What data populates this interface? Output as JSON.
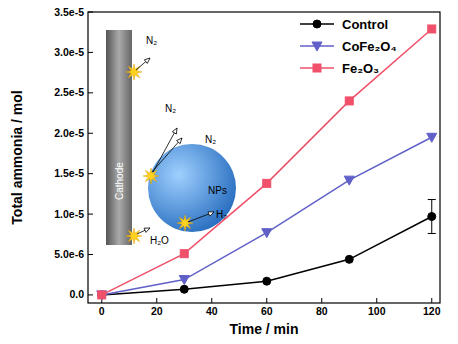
{
  "chart_data": {
    "type": "line",
    "x_label": "Time / min",
    "y_label": "Total ammonia / mol",
    "x": [
      0,
      30,
      60,
      90,
      120
    ],
    "series": [
      {
        "name": "Control",
        "color": "#000000",
        "marker": "circle",
        "values": [
          0,
          7e-07,
          1.7e-06,
          4.4e-06,
          9.7e-06
        ],
        "errors": [
          null,
          null,
          null,
          null,
          2.1e-06
        ]
      },
      {
        "name": "CoFe₂O₄",
        "color": "#6060c8",
        "marker": "triangle-down",
        "values": [
          0,
          1.9e-06,
          7.7e-06,
          1.42e-05,
          1.95e-05
        ]
      },
      {
        "name": "Fe₂O₃",
        "color": "#f0506a",
        "marker": "square",
        "values": [
          0,
          5.1e-06,
          1.38e-05,
          2.4e-05,
          3.29e-05
        ]
      }
    ],
    "xlim": [
      -5,
      123
    ],
    "ylim": [
      -1e-06,
      3.5e-05
    ],
    "xticks": [
      0,
      20,
      40,
      60,
      80,
      100,
      120
    ],
    "yticks": [
      {
        "value": 0,
        "label": "0.0"
      },
      {
        "value": 5e-06,
        "label": "5.0e-6"
      },
      {
        "value": 1e-05,
        "label": "1.0e-5"
      },
      {
        "value": 1.5e-05,
        "label": "1.5e-5"
      },
      {
        "value": 2e-05,
        "label": "2.0e-5"
      },
      {
        "value": 2.5e-05,
        "label": "2.5e-5"
      },
      {
        "value": 3e-05,
        "label": "3.0e-5"
      },
      {
        "value": 3.5e-05,
        "label": "3.5e-5"
      }
    ],
    "legend": "upper right",
    "annotations": [
      "N₂",
      "N₂",
      "N₂",
      "H₂",
      "H₂O",
      "NPs",
      "Cathode"
    ]
  }
}
